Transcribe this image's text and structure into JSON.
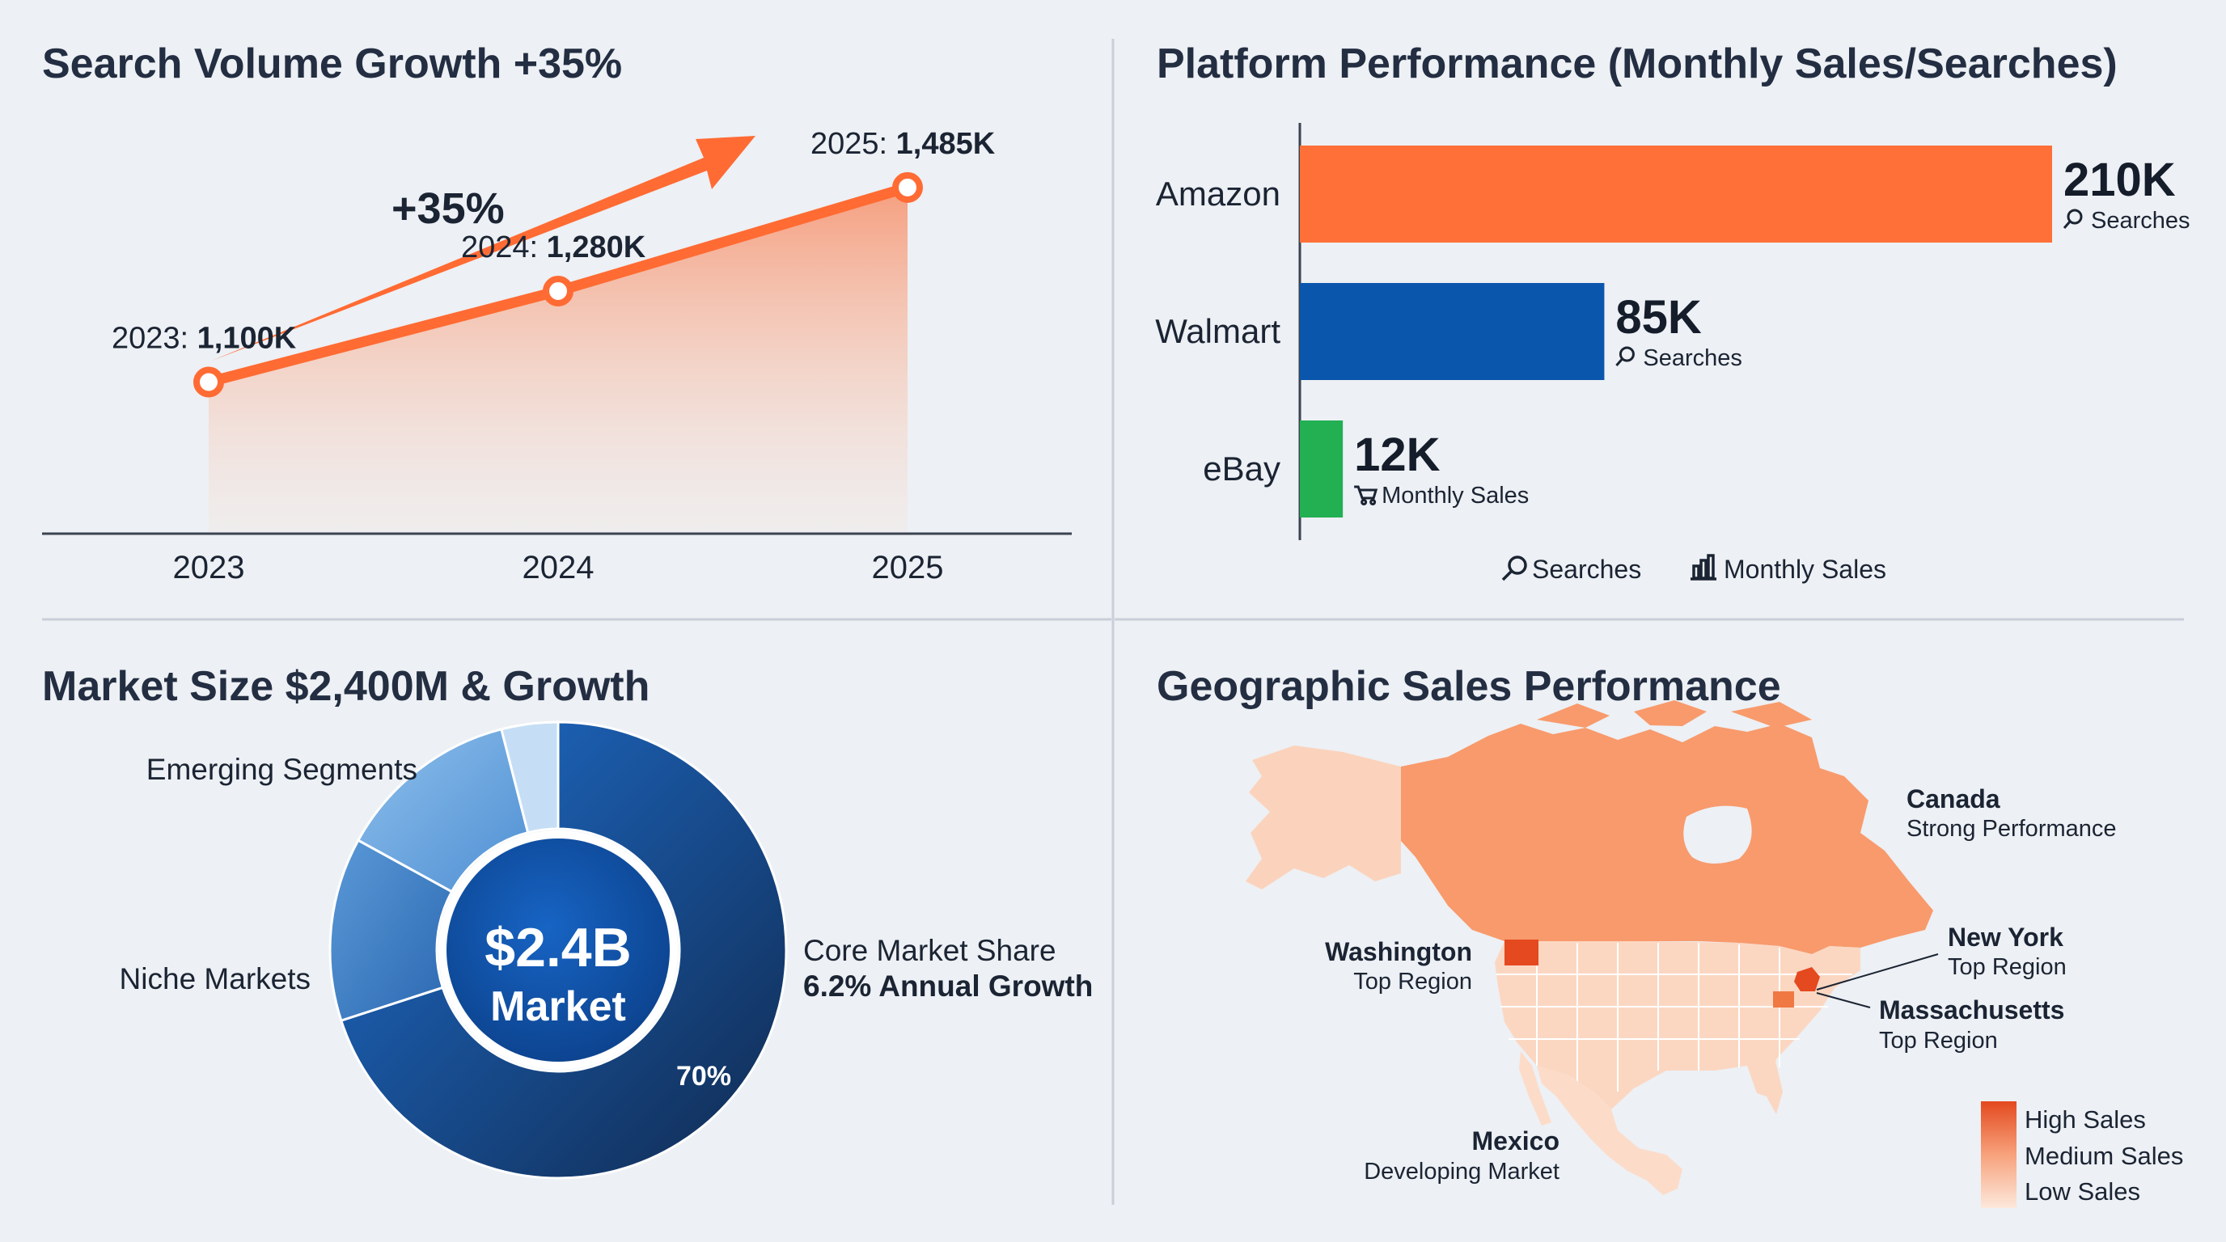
{
  "colors": {
    "orange": "#ff7038",
    "orange_dark": "#e4491f",
    "walmart_blue": "#0b56ad",
    "ebay_green": "#22b053",
    "navy": "#14325f",
    "text": "#1f2b3d"
  },
  "chart_data": [
    {
      "type": "line",
      "title": "Search Volume Growth +35%",
      "categories": [
        "2023",
        "2024",
        "2025"
      ],
      "values": [
        1100,
        1280,
        1485
      ],
      "unit": "K",
      "point_labels": [
        {
          "prefix": "2023: ",
          "value": "1,100K"
        },
        {
          "prefix": "2024: ",
          "value": "1,280K"
        },
        {
          "prefix": "2025: ",
          "value": "1,485K"
        }
      ],
      "growth_label": "+35%",
      "ylim": [
        800,
        1600
      ]
    },
    {
      "type": "bar",
      "orientation": "horizontal",
      "title": "Platform Performance (Monthly Sales/Searches)",
      "categories": [
        "Amazon",
        "Walmart",
        "eBay"
      ],
      "values": [
        210,
        85,
        12
      ],
      "unit": "K",
      "value_labels": [
        "210K",
        "85K",
        "12K"
      ],
      "metrics": [
        "Searches",
        "Searches",
        "Monthly Sales"
      ],
      "colors": [
        "#ff7038",
        "#0b56ad",
        "#22b053"
      ],
      "legend": [
        "Searches",
        "Monthly Sales"
      ],
      "xlim": [
        0,
        210
      ]
    },
    {
      "type": "pie",
      "title": "Market Size $2,400M & Growth",
      "center_value": "$2.4B",
      "center_label": "Market",
      "slices": [
        {
          "label": "Core Market Share",
          "sublabel": "6.2% Annual Growth",
          "value": 70,
          "pct_label": "70%"
        },
        {
          "label": "Niche Markets",
          "value": 13
        },
        {
          "label": "Emerging Segments",
          "value": 13
        },
        {
          "label": "",
          "value": 4
        }
      ]
    },
    {
      "type": "map",
      "title": "Geographic Sales Performance",
      "regions": [
        {
          "name": "Canada",
          "note": "Strong Performance",
          "level": "medium"
        },
        {
          "name": "Washington",
          "note": "Top Region",
          "level": "high"
        },
        {
          "name": "New York",
          "note": "Top Region",
          "level": "high"
        },
        {
          "name": "Massachusetts",
          "note": "Top Region",
          "level": "high"
        },
        {
          "name": "Mexico",
          "note": "Developing Market",
          "level": "low"
        }
      ],
      "legend": [
        "High Sales",
        "Medium Sales",
        "Low Sales"
      ]
    }
  ]
}
